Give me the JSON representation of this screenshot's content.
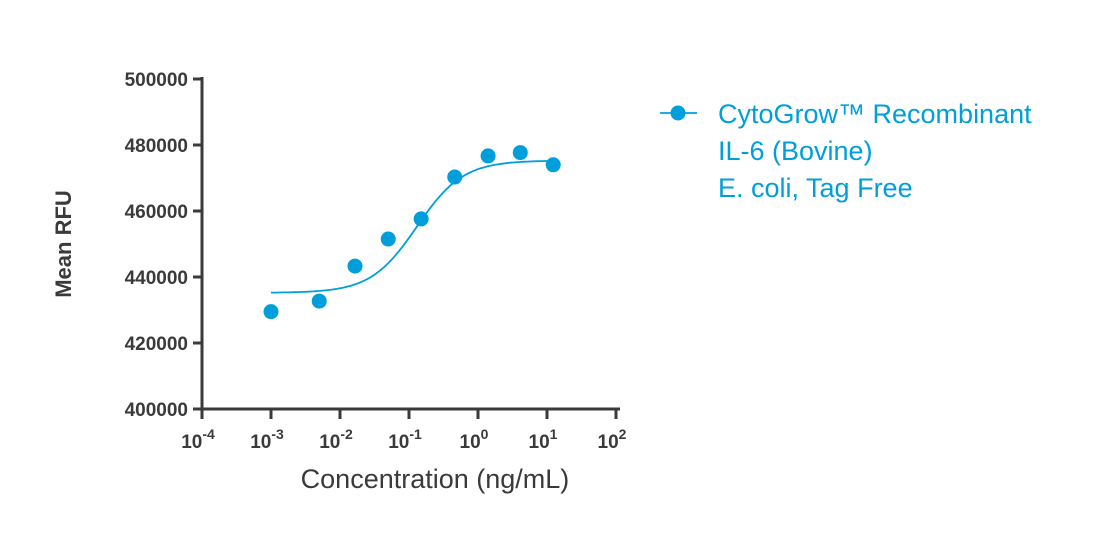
{
  "chart_data": {
    "type": "scatter",
    "title": "",
    "xlabel": "Concentration (ng/mL)",
    "ylabel": "Mean RFU",
    "xscale": "log",
    "xlim": [
      0.0001,
      100
    ],
    "ylim": [
      400000,
      500000
    ],
    "x_ticks": [
      {
        "base": "10",
        "exp": "-4",
        "value": 0.0001
      },
      {
        "base": "10",
        "exp": "-3",
        "value": 0.001
      },
      {
        "base": "10",
        "exp": "-2",
        "value": 0.01
      },
      {
        "base": "10",
        "exp": "-1",
        "value": 0.1
      },
      {
        "base": "10",
        "exp": "0",
        "value": 1
      },
      {
        "base": "10",
        "exp": "1",
        "value": 10
      },
      {
        "base": "10",
        "exp": "2",
        "value": 100
      }
    ],
    "y_ticks": [
      "400000",
      "420000",
      "440000",
      "460000",
      "480000",
      "500000"
    ],
    "grid": false,
    "legend_position": "right",
    "series": [
      {
        "name": "CytoGrow™ Recombinant IL-6 (Bovine) E. coli, Tag Free",
        "legend_lines": [
          "CytoGrow™ Recombinant",
          "IL-6 (Bovine)",
          "E. coli, Tag Free"
        ],
        "color": "#009fdb",
        "x": [
          0.001,
          0.005,
          0.0165,
          0.05,
          0.15,
          0.46,
          1.4,
          4.1,
          12.3
        ],
        "y": [
          429500,
          432700,
          443300,
          451500,
          457600,
          470300,
          476700,
          477700,
          474000
        ],
        "fit": {
          "model": "4PL",
          "bottom": 435200,
          "top": 475300,
          "ec50": 0.13,
          "hill": 1.3,
          "x_range": [
            0.001,
            12.3
          ]
        }
      }
    ]
  }
}
